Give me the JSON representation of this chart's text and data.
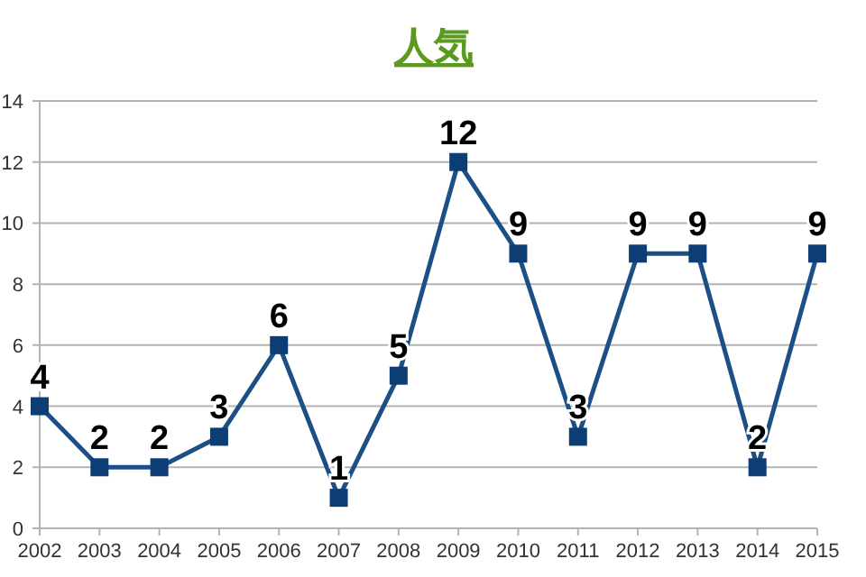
{
  "chart_data": {
    "type": "line",
    "title": "人気",
    "categories": [
      "2002",
      "2003",
      "2004",
      "2005",
      "2006",
      "2007",
      "2008",
      "2009",
      "2010",
      "2011",
      "2012",
      "2013",
      "2014",
      "2015"
    ],
    "series": [
      {
        "color": "#1b4f86",
        "values": [
          4,
          2,
          2,
          3,
          6,
          1,
          5,
          12,
          9,
          3,
          9,
          9,
          2,
          9
        ]
      }
    ],
    "ylim": [
      0,
      14
    ],
    "yticks": [
      0,
      2,
      4,
      6,
      8,
      10,
      12,
      14
    ],
    "grid": "y",
    "marker": "square",
    "line_style": "solid",
    "data_labels": true
  }
}
